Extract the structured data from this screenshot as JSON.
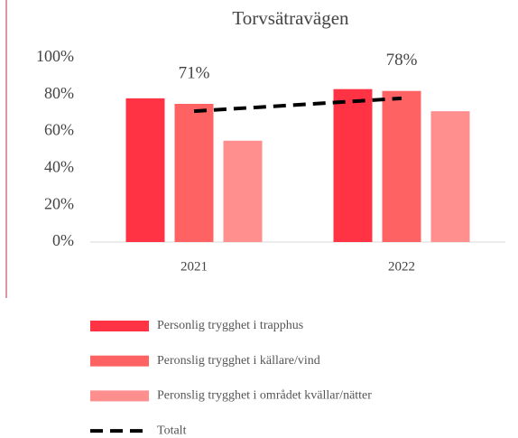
{
  "chart_data": {
    "type": "bar",
    "title": "Torvsätravägen",
    "categories": [
      "2021",
      "2022"
    ],
    "series": [
      {
        "name": "Personlig trygghet i trapphus",
        "color": "#ff3344",
        "values": [
          78,
          83
        ]
      },
      {
        "name": "Peronslig trygghet i källare/vind",
        "color": "#ff6262",
        "values": [
          75,
          82
        ]
      },
      {
        "name": "Peronslig trygghet i området kvällar/nätter",
        "color": "#ff8e8e",
        "values": [
          55,
          71
        ]
      },
      {
        "name": "Totalt",
        "type": "line",
        "color": "#000000",
        "values": [
          71,
          78
        ],
        "value_labels": [
          "71%",
          "78%"
        ]
      }
    ],
    "ylim": [
      0,
      100
    ],
    "yticks": [
      {
        "value": 0,
        "label": "0%"
      },
      {
        "value": 20,
        "label": "20%"
      },
      {
        "value": 40,
        "label": "40%"
      },
      {
        "value": 60,
        "label": "60%"
      },
      {
        "value": 80,
        "label": "80%"
      },
      {
        "value": 100,
        "label": "100%"
      }
    ],
    "grid": false,
    "legend": "bottom"
  }
}
